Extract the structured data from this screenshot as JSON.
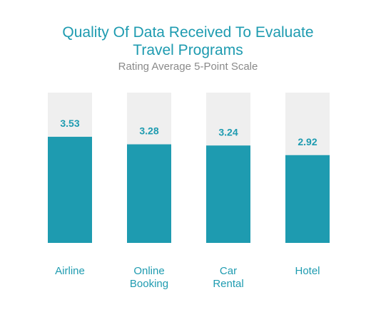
{
  "header": {
    "title_line1": "Quality Of Data Received To Evaluate",
    "title_line2": "Travel Programs",
    "subtitle": "Rating Average 5-Point Scale"
  },
  "colors": {
    "bar": "#1e9bb0",
    "bar_background": "#efefef",
    "text": "#1e9bb0",
    "subtitle": "#8a8a8a"
  },
  "chart_data": {
    "type": "bar",
    "title": "Quality Of Data Received To Evaluate Travel Programs",
    "subtitle": "Rating Average 5-Point Scale",
    "categories": [
      [
        "Airline"
      ],
      [
        "Online",
        "Booking"
      ],
      [
        "Car",
        "Rental"
      ],
      [
        "Hotel"
      ]
    ],
    "values": [
      3.53,
      3.28,
      3.24,
      2.92
    ],
    "value_labels": [
      "3.53",
      "3.28",
      "3.24",
      "2.92"
    ],
    "ylim": [
      0,
      5
    ],
    "grid": false,
    "legend": "none"
  }
}
